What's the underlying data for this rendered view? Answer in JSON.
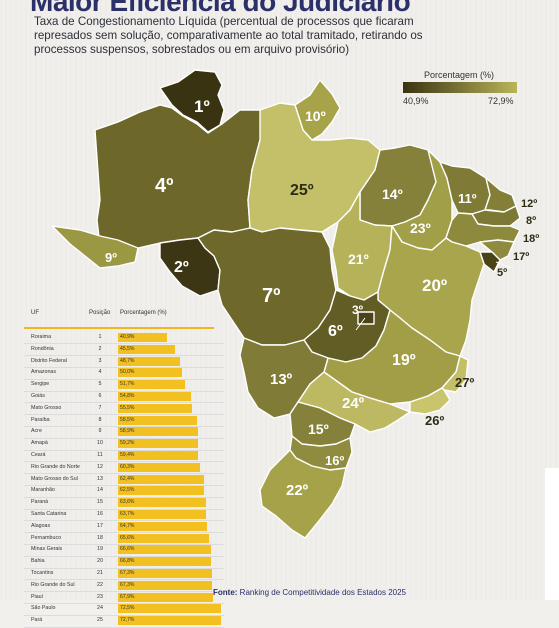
{
  "header": {
    "title_partial": "Maior Eficiência do Judiciário",
    "subtitle": "Taxa de Congestionamento Líquida (percentual de processos que ficaram represados sem solução, comparativamente ao total tramitado, retirando os processos suspensos, sobrestados ou em arquivo provisório)"
  },
  "legend": {
    "title": "Porcentagem (%)",
    "min": "40,9%",
    "max": "72,9%",
    "color_min": "#3a3312",
    "color_max": "#b9b55a"
  },
  "map": {
    "labels": {
      "RR": "1º",
      "AP": "10º",
      "AM": "4º",
      "PA": "25º",
      "AC": "9º",
      "RO": "2º",
      "MT": "7º",
      "DF": "3º",
      "GO": "6º",
      "MA": "14º",
      "PI": "23º",
      "CE": "11º",
      "RN": "12º",
      "PB": "8º",
      "PE": "18º",
      "AL": "17º",
      "SE": "5º",
      "TO": "21º",
      "BA": "20º",
      "MG": "19º",
      "ES": "27º",
      "RJ": "26º",
      "MS": "13º",
      "SP": "24º",
      "PR": "15º",
      "SC": "16º",
      "RS": "22º"
    },
    "colors": {
      "RR": "#3a3312",
      "AP": "#a6a349",
      "AM": "#6d6729",
      "PA": "#c4c06a",
      "AC": "#9b9844",
      "RO": "#3d3614",
      "MT": "#6e692a",
      "DF": "#4c4419",
      "GO": "#625c25",
      "MA": "#85803a",
      "PI": "#a29f49",
      "CE": "#7f7a36",
      "RN": "#837f39",
      "PB": "#7d7935",
      "PE": "#8d8a3d",
      "AL": "#8e8a3e",
      "SE": "#4a4318",
      "TO": "#b5b25a",
      "BA": "#a8a54c",
      "MG": "#a19e47",
      "ES": "#c2bf66",
      "RJ": "#c8c56d",
      "MS": "#807b37",
      "SP": "#bdb962",
      "PR": "#85813a",
      "SC": "#8f8b3f",
      "RS": "#a5a24a"
    }
  },
  "table": {
    "headers": {
      "uf": "UF",
      "pos": "Posição",
      "pct": "Porcentagem (%)"
    },
    "rows": [
      {
        "uf": "Roraima",
        "pos": "1",
        "pct": "40,9%",
        "v": 40.9
      },
      {
        "uf": "Rondônia",
        "pos": "2",
        "pct": "45,5%",
        "v": 45.5
      },
      {
        "uf": "Distrito Federal",
        "pos": "3",
        "pct": "48,7%",
        "v": 48.7
      },
      {
        "uf": "Amazonas",
        "pos": "4",
        "pct": "50,0%",
        "v": 50.0
      },
      {
        "uf": "Sergipe",
        "pos": "5",
        "pct": "51,7%",
        "v": 51.7
      },
      {
        "uf": "Goiás",
        "pos": "6",
        "pct": "54,8%",
        "v": 54.8
      },
      {
        "uf": "Mato Grosso",
        "pos": "7",
        "pct": "55,5%",
        "v": 55.5
      },
      {
        "uf": "Paraíba",
        "pos": "8",
        "pct": "58,5%",
        "v": 58.5
      },
      {
        "uf": "Acre",
        "pos": "9",
        "pct": "58,9%",
        "v": 58.9
      },
      {
        "uf": "Amapá",
        "pos": "10",
        "pct": "59,2%",
        "v": 59.2
      },
      {
        "uf": "Ceará",
        "pos": "11",
        "pct": "59,4%",
        "v": 59.4
      },
      {
        "uf": "Rio Grande do Norte",
        "pos": "12",
        "pct": "60,3%",
        "v": 60.3
      },
      {
        "uf": "Mato Grosso do Sul",
        "pos": "13",
        "pct": "62,4%",
        "v": 62.4
      },
      {
        "uf": "Maranhão",
        "pos": "14",
        "pct": "62,5%",
        "v": 62.5
      },
      {
        "uf": "Paraná",
        "pos": "15",
        "pct": "63,6%",
        "v": 63.6
      },
      {
        "uf": "Santa Catarina",
        "pos": "16",
        "pct": "63,7%",
        "v": 63.7
      },
      {
        "uf": "Alagoas",
        "pos": "17",
        "pct": "64,7%",
        "v": 64.7
      },
      {
        "uf": "Pernambuco",
        "pos": "18",
        "pct": "65,6%",
        "v": 65.6
      },
      {
        "uf": "Minas Gerais",
        "pos": "19",
        "pct": "66,6%",
        "v": 66.6
      },
      {
        "uf": "Bahia",
        "pos": "20",
        "pct": "66,8%",
        "v": 66.8
      },
      {
        "uf": "Tocantins",
        "pos": "21",
        "pct": "67,3%",
        "v": 67.3
      },
      {
        "uf": "Rio Grande do Sul",
        "pos": "22",
        "pct": "67,3%",
        "v": 67.3
      },
      {
        "uf": "Piauí",
        "pos": "23",
        "pct": "67,9%",
        "v": 67.9
      },
      {
        "uf": "São Paulo",
        "pos": "24",
        "pct": "72,5%",
        "v": 72.5
      },
      {
        "uf": "Pará",
        "pos": "25",
        "pct": "72,7%",
        "v": 72.7
      }
    ]
  },
  "footer": {
    "label": "Fonte:",
    "text": "Ranking de Competitividade dos Estados 2025"
  }
}
